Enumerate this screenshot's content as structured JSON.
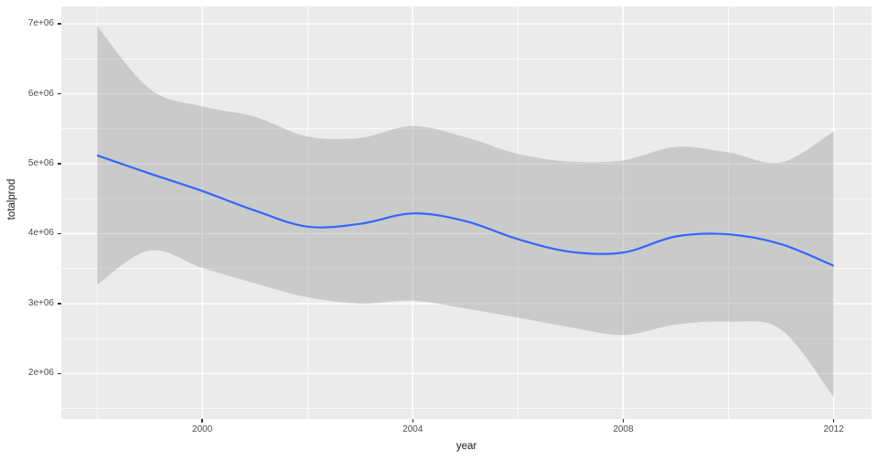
{
  "figure": {
    "colors": {
      "plot_background": "#FFFFFF",
      "panel_background": "#EBEBEB",
      "grid_line": "#FFFFFF",
      "smooth_line": "#3366FF",
      "ribbon_fill": "#999999",
      "ribbon_alpha": 0.4,
      "axis_text": "#4D4D4D",
      "axis_title": "#1A1A1A",
      "tick_mark": "#333333"
    },
    "y_axis": {
      "title": "totalprod",
      "tick_labels": [
        "2e+06",
        "3e+06",
        "4e+06",
        "5e+06",
        "6e+06",
        "7e+06"
      ],
      "tick_values": [
        2000000,
        3000000,
        4000000,
        5000000,
        6000000,
        7000000
      ],
      "minor_values": [
        1500000,
        2500000,
        3500000,
        4500000,
        5500000,
        6500000
      ]
    },
    "x_axis": {
      "title": "year",
      "tick_labels": [
        "2000",
        "2004",
        "2008",
        "2012"
      ],
      "tick_values": [
        2000,
        2004,
        2008,
        2012
      ],
      "minor_values": [
        1998,
        2002,
        2006,
        2010
      ]
    }
  },
  "chart_data": {
    "type": "line",
    "title": "",
    "xlabel": "year",
    "ylabel": "totalprod",
    "xlim": [
      1997.32,
      2012.72
    ],
    "ylim": [
      1350000,
      7250000
    ],
    "grid": "major+minor",
    "legend": "none",
    "description": "Loess-smoothed trend of totalprod by year with gray confidence ribbon (ggplot2 style)",
    "x": [
      1998,
      1999,
      2000,
      2001,
      2002,
      2003,
      2004,
      2005,
      2006,
      2007,
      2008,
      2009,
      2010,
      2011,
      2012
    ],
    "series": [
      {
        "name": "smooth_fit",
        "values": [
          5120000,
          4860000,
          4610000,
          4330000,
          4100000,
          4140000,
          4290000,
          4180000,
          3920000,
          3740000,
          3730000,
          3960000,
          3990000,
          3850000,
          3540000
        ]
      },
      {
        "name": "ci_upper",
        "values": [
          6970000,
          6070000,
          5820000,
          5670000,
          5390000,
          5370000,
          5540000,
          5380000,
          5140000,
          5030000,
          5050000,
          5240000,
          5160000,
          5020000,
          5460000
        ]
      },
      {
        "name": "ci_lower",
        "values": [
          3270000,
          3760000,
          3510000,
          3290000,
          3090000,
          3000000,
          3040000,
          2930000,
          2800000,
          2660000,
          2550000,
          2700000,
          2740000,
          2630000,
          1660000
        ]
      }
    ]
  }
}
